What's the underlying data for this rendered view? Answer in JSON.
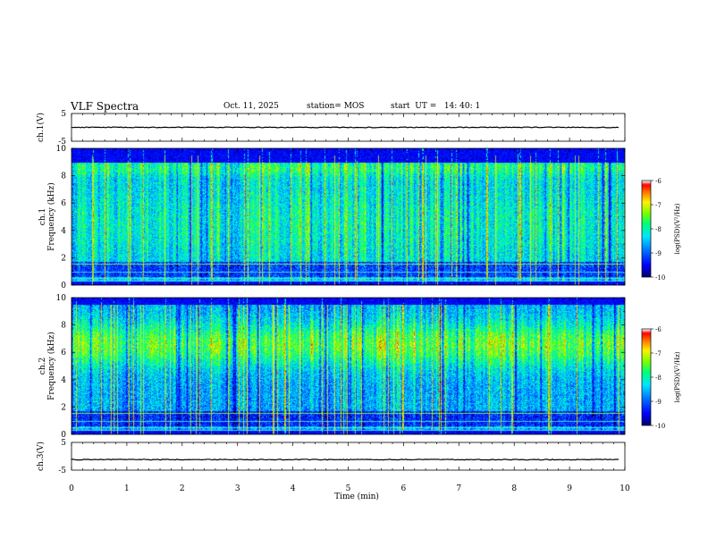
{
  "header": {
    "title": "VLF Spectra",
    "date": "Oct. 11, 2025",
    "station": "station= MOS",
    "start_ut": "start  UT =   14: 40: 1"
  },
  "colors": {
    "colormap": [
      "#00007f",
      "#0000ff",
      "#0080ff",
      "#00ffff",
      "#00ff80",
      "#80ff00",
      "#ffff00",
      "#ff8000",
      "#ff0000",
      "#ffffff"
    ],
    "axis": "#000000"
  },
  "chart_data": [
    {
      "type": "line",
      "name": "ch.1 waveform",
      "ylabel": "ch.1(V)",
      "ylim": [
        -5,
        5
      ],
      "yticks": [
        "5",
        "-5"
      ],
      "trace_value": 0
    },
    {
      "type": "heatmap",
      "name": "ch.1 spectrogram",
      "ylabel": "ch.1\nFrequency (kHz)",
      "ylabel_line1": "ch.1",
      "ylabel_line2": "Frequency  (kHz)",
      "ylim": [
        0,
        10
      ],
      "yticks": [
        "0",
        "2",
        "4",
        "6",
        "8",
        "10"
      ],
      "xlim": [
        0,
        10
      ],
      "colorbar": {
        "label": "log(PSD)(V²/Hz)",
        "range": [
          -10,
          -6
        ],
        "ticks": [
          "-6",
          "-7",
          "-8",
          "-9",
          "-10"
        ]
      },
      "horizontal_lines_khz": [
        0.3,
        0.5,
        1.0,
        1.6
      ],
      "band_khz": [
        0.5,
        9.0
      ]
    },
    {
      "type": "heatmap",
      "name": "ch.2 spectrogram",
      "ylabel": "ch.2\nFrequency (kHz)",
      "ylabel_line1": "ch.2",
      "ylabel_line2": "Frequency  (kHz)",
      "ylim": [
        0,
        10
      ],
      "yticks": [
        "0",
        "2",
        "4",
        "6",
        "8",
        "10"
      ],
      "xlim": [
        0,
        10
      ],
      "colorbar": {
        "label": "log(PSD)(V²/Hz)",
        "range": [
          -10,
          -6
        ],
        "ticks": [
          "-6",
          "-7",
          "-8",
          "-9",
          "-10"
        ]
      },
      "horizontal_lines_khz": [
        0.3,
        0.5,
        1.0,
        1.6
      ],
      "band_khz": [
        0.5,
        9.5
      ]
    },
    {
      "type": "line",
      "name": "ch.3 waveform",
      "ylabel": "ch.3(V)",
      "ylim": [
        -5,
        5
      ],
      "yticks": [
        "5",
        "-5"
      ],
      "trace_value": -1.2
    }
  ],
  "xaxis": {
    "xlabel": "Time  (min)",
    "xlim": [
      0,
      10
    ],
    "xticks": [
      "0",
      "1",
      "2",
      "3",
      "4",
      "5",
      "6",
      "7",
      "8",
      "9",
      "10"
    ]
  }
}
